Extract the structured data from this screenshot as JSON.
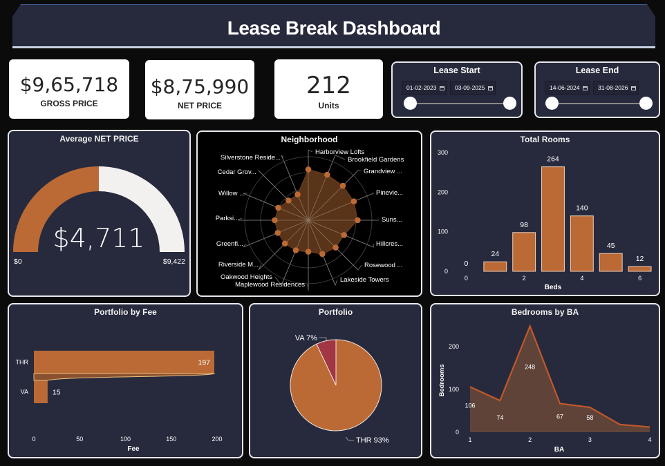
{
  "header": {
    "title": "Lease Break Dashboard"
  },
  "kpis": [
    {
      "value": "$9,65,718",
      "label": "GROSS PRICE"
    },
    {
      "value": "$8,75,990",
      "label": "NET PRICE"
    },
    {
      "value": "212",
      "label": "Units"
    }
  ],
  "slicers": {
    "lease_start": {
      "title": "Lease Start",
      "from": "01-02-2023",
      "to": "03-09-2025",
      "icon": "calendar-icon"
    },
    "lease_end": {
      "title": "Lease End",
      "from": "14-06-2024",
      "to": "31-08-2026",
      "icon": "calendar-icon"
    }
  },
  "colors": {
    "accent": "#bb6a36",
    "panel": "#272a3d",
    "pie_secondary": "#a23642",
    "gauge_track": "#f2f1ef"
  },
  "chart_data": [
    {
      "id": "gauge",
      "type": "gauge",
      "title": "Average NET PRICE",
      "value": 4711,
      "value_label": "$4,711",
      "min": 0,
      "max": 9422,
      "min_label": "$0",
      "max_label": "$9,422"
    },
    {
      "id": "neighborhood",
      "type": "radar",
      "title": "Neighborhood",
      "categories": [
        "Harborview Lofts",
        "Brookfield Gardens",
        "Grandview ...",
        "Pinevie...",
        "Suns...",
        "Hillcres...",
        "Rosewood ...",
        "Lakeside Towers",
        "Maplewood Residences",
        "Oakwood Heights",
        "Riverside M...",
        "Greenfi...",
        "Parksi...",
        "Willow ...",
        "Cedar Grov...",
        "Silverstone Reside..."
      ],
      "values": [
        100,
        97,
        96,
        97,
        97,
        76,
        76,
        72,
        62,
        64,
        65,
        65,
        66,
        64,
        55,
        55
      ],
      "axis_max": 125
    },
    {
      "id": "total-rooms",
      "type": "bar",
      "title": "Total Rooms",
      "xlabel": "Beds",
      "ylabel": "",
      "categories": [
        0,
        1,
        2,
        3,
        4,
        5,
        6
      ],
      "values": [
        0,
        24,
        98,
        264,
        140,
        45,
        12
      ],
      "x_ticks": [
        0,
        2,
        4,
        6
      ],
      "y_ticks": [
        0,
        100,
        200,
        300
      ],
      "ylim": [
        0,
        300
      ]
    },
    {
      "id": "portfolio-by-fee",
      "type": "bar",
      "orientation": "horizontal",
      "title": "Portfolio by Fee",
      "xlabel": "Fee",
      "categories": [
        "THR",
        "VA"
      ],
      "values": [
        197,
        15
      ],
      "x_ticks": [
        0,
        50,
        100,
        150,
        200
      ],
      "xlim": [
        0,
        200
      ]
    },
    {
      "id": "portfolio",
      "type": "pie",
      "title": "Portfolio",
      "slices": [
        {
          "label": "THR",
          "value": 93,
          "display": "THR 93%"
        },
        {
          "label": "VA",
          "value": 7,
          "display": "VA 7%"
        }
      ]
    },
    {
      "id": "bedrooms-by-ba",
      "type": "area",
      "title": "Bedrooms by BA",
      "xlabel": "BA",
      "ylabel": "Bedrooms",
      "x": [
        1,
        1.5,
        2,
        2.5,
        3,
        3.5,
        4
      ],
      "y": [
        106,
        74,
        248,
        67,
        58,
        18,
        12
      ],
      "labels": [
        "106",
        "74",
        "248",
        "67",
        "58",
        "",
        ""
      ],
      "x_ticks": [
        1,
        2,
        3,
        4
      ],
      "y_ticks": [
        0,
        100,
        200
      ],
      "ylim": [
        0,
        260
      ]
    }
  ]
}
